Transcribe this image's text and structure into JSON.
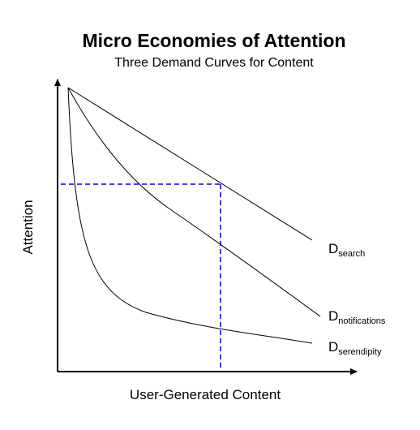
{
  "header": {
    "title": "Micro Economies of Attention",
    "subtitle": "Three Demand Curves for Content"
  },
  "axes": {
    "y_label": "Attention",
    "x_label": "User-Generated Content"
  },
  "curves": [
    {
      "label": "D",
      "subscript": "search"
    },
    {
      "label": "D",
      "subscript": "notifications"
    },
    {
      "label": "D",
      "subscript": "serendipity"
    }
  ]
}
